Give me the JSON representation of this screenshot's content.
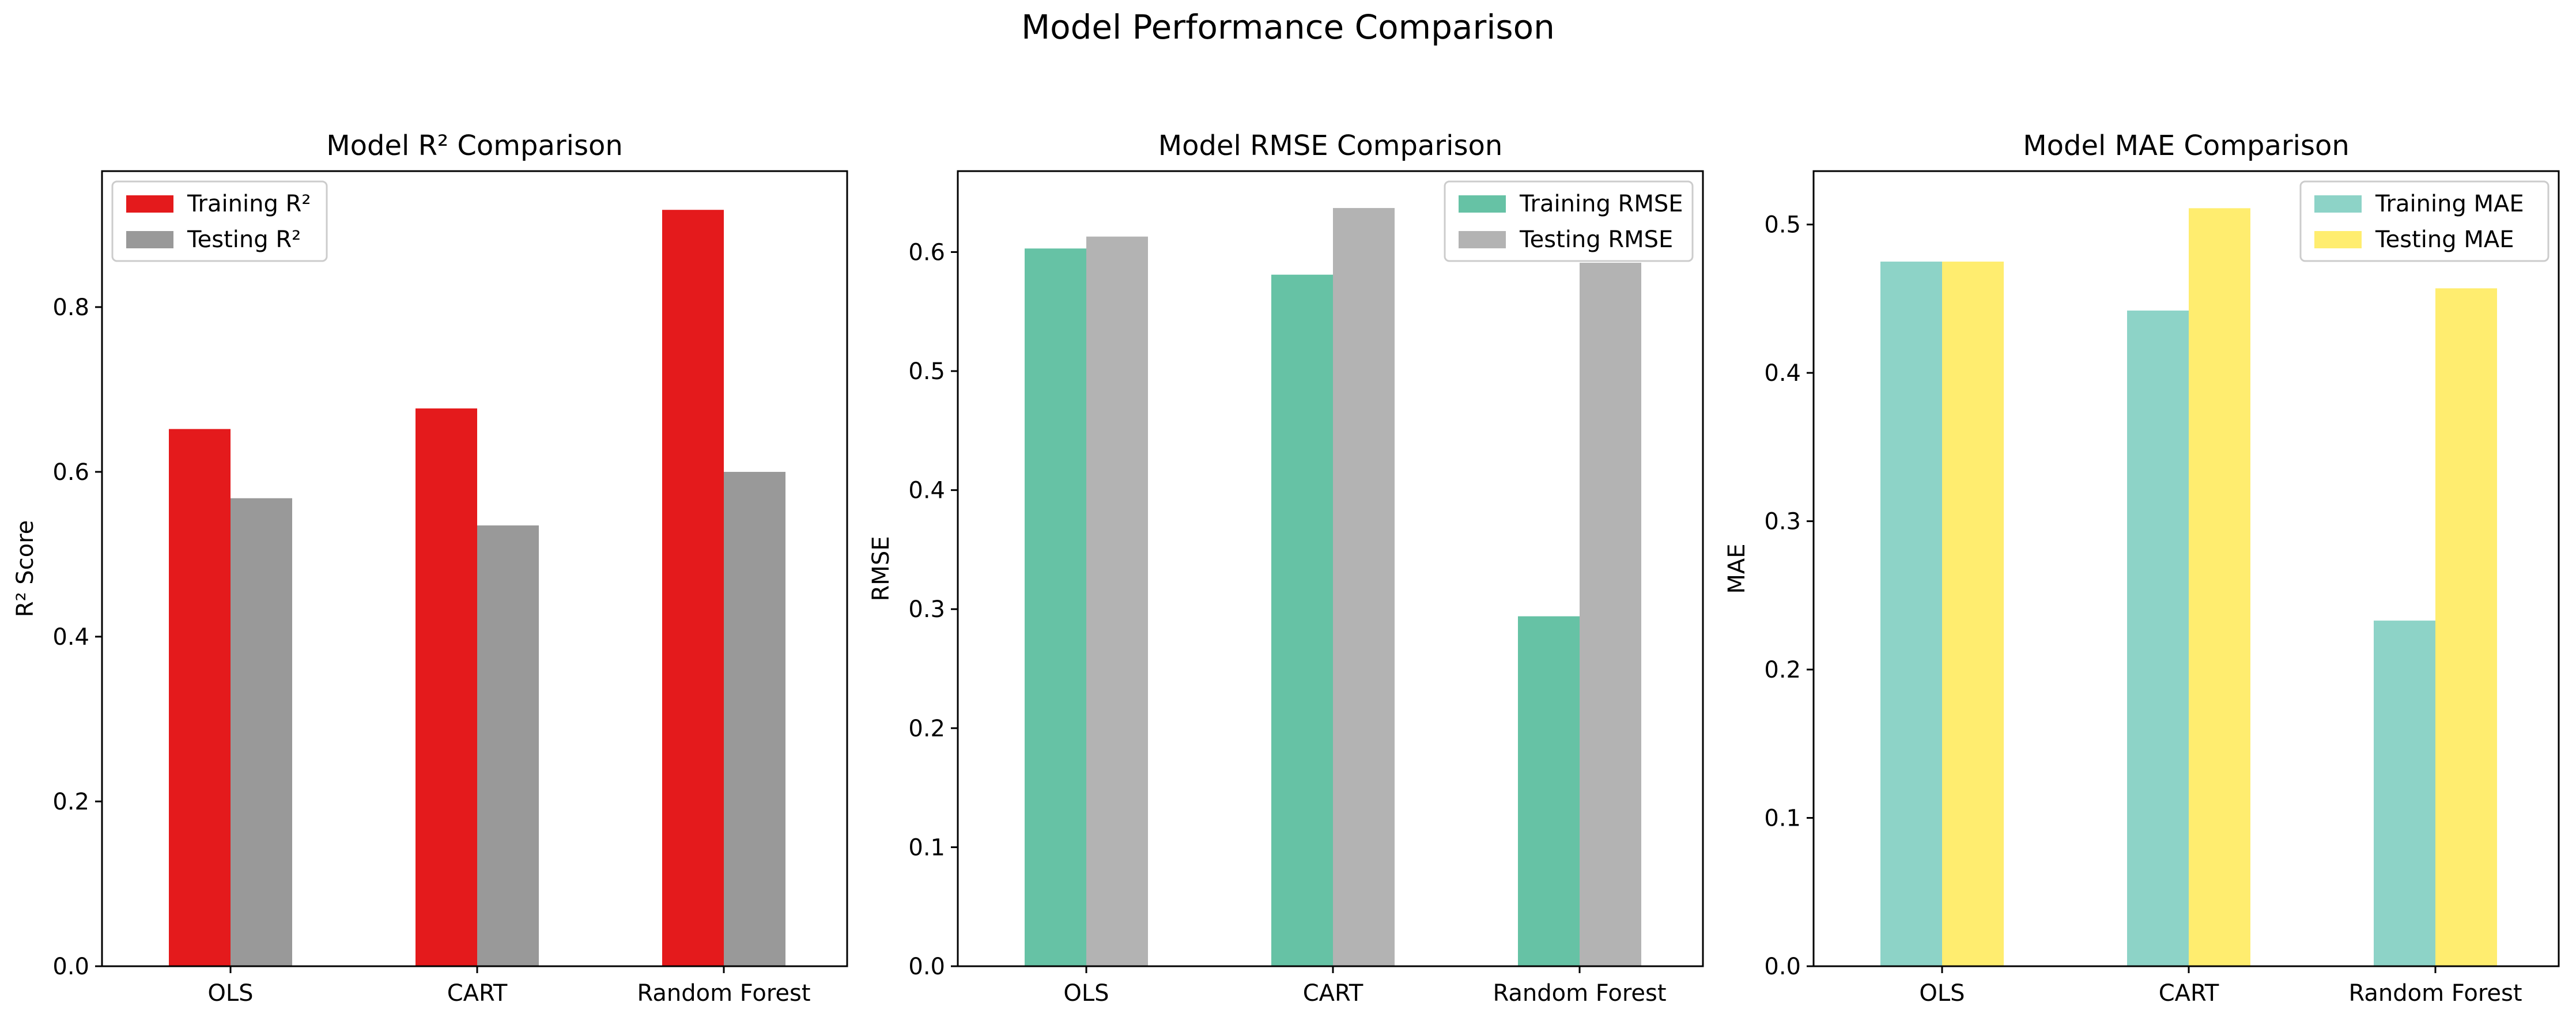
{
  "figure": {
    "title": "Model Performance Comparison"
  },
  "chart_data": [
    {
      "type": "bar",
      "title": "Model R² Comparison",
      "xlabel": "",
      "ylabel": "R² Score",
      "categories": [
        "OLS",
        "CART",
        "Random Forest"
      ],
      "ylim": [
        0,
        0.965
      ],
      "yticks": [
        0.0,
        0.2,
        0.4,
        0.6,
        0.8
      ],
      "ytick_labels": [
        "0.0",
        "0.2",
        "0.4",
        "0.6",
        "0.8"
      ],
      "grid": false,
      "legend_position": "upper-left",
      "series": [
        {
          "name": "Training R²",
          "color": "#e41a1c",
          "values": [
            0.652,
            0.677,
            0.918
          ]
        },
        {
          "name": "Testing R²",
          "color": "#999999",
          "values": [
            0.568,
            0.535,
            0.6
          ]
        }
      ]
    },
    {
      "type": "bar",
      "title": "Model RMSE Comparison",
      "xlabel": "",
      "ylabel": "RMSE",
      "categories": [
        "OLS",
        "CART",
        "Random Forest"
      ],
      "ylim": [
        0,
        0.668
      ],
      "yticks": [
        0.0,
        0.1,
        0.2,
        0.3,
        0.4,
        0.5,
        0.6
      ],
      "ytick_labels": [
        "0.0",
        "0.1",
        "0.2",
        "0.3",
        "0.4",
        "0.5",
        "0.6"
      ],
      "grid": false,
      "legend_position": "upper-right",
      "series": [
        {
          "name": "Training RMSE",
          "color": "#66c2a5",
          "values": [
            0.603,
            0.581,
            0.294
          ]
        },
        {
          "name": "Testing RMSE",
          "color": "#b3b3b3",
          "values": [
            0.613,
            0.637,
            0.591
          ]
        }
      ]
    },
    {
      "type": "bar",
      "title": "Model MAE Comparison",
      "xlabel": "",
      "ylabel": "MAE",
      "categories": [
        "OLS",
        "CART",
        "Random Forest"
      ],
      "ylim": [
        0,
        0.536
      ],
      "yticks": [
        0.0,
        0.1,
        0.2,
        0.3,
        0.4,
        0.5
      ],
      "ytick_labels": [
        "0.0",
        "0.1",
        "0.2",
        "0.3",
        "0.4",
        "0.5"
      ],
      "grid": false,
      "legend_position": "upper-right",
      "series": [
        {
          "name": "Training MAE",
          "color": "#8dd3c7",
          "values": [
            0.475,
            0.442,
            0.233
          ]
        },
        {
          "name": "Testing MAE",
          "color": "#ffed6f",
          "values": [
            0.475,
            0.511,
            0.457
          ]
        }
      ]
    }
  ]
}
